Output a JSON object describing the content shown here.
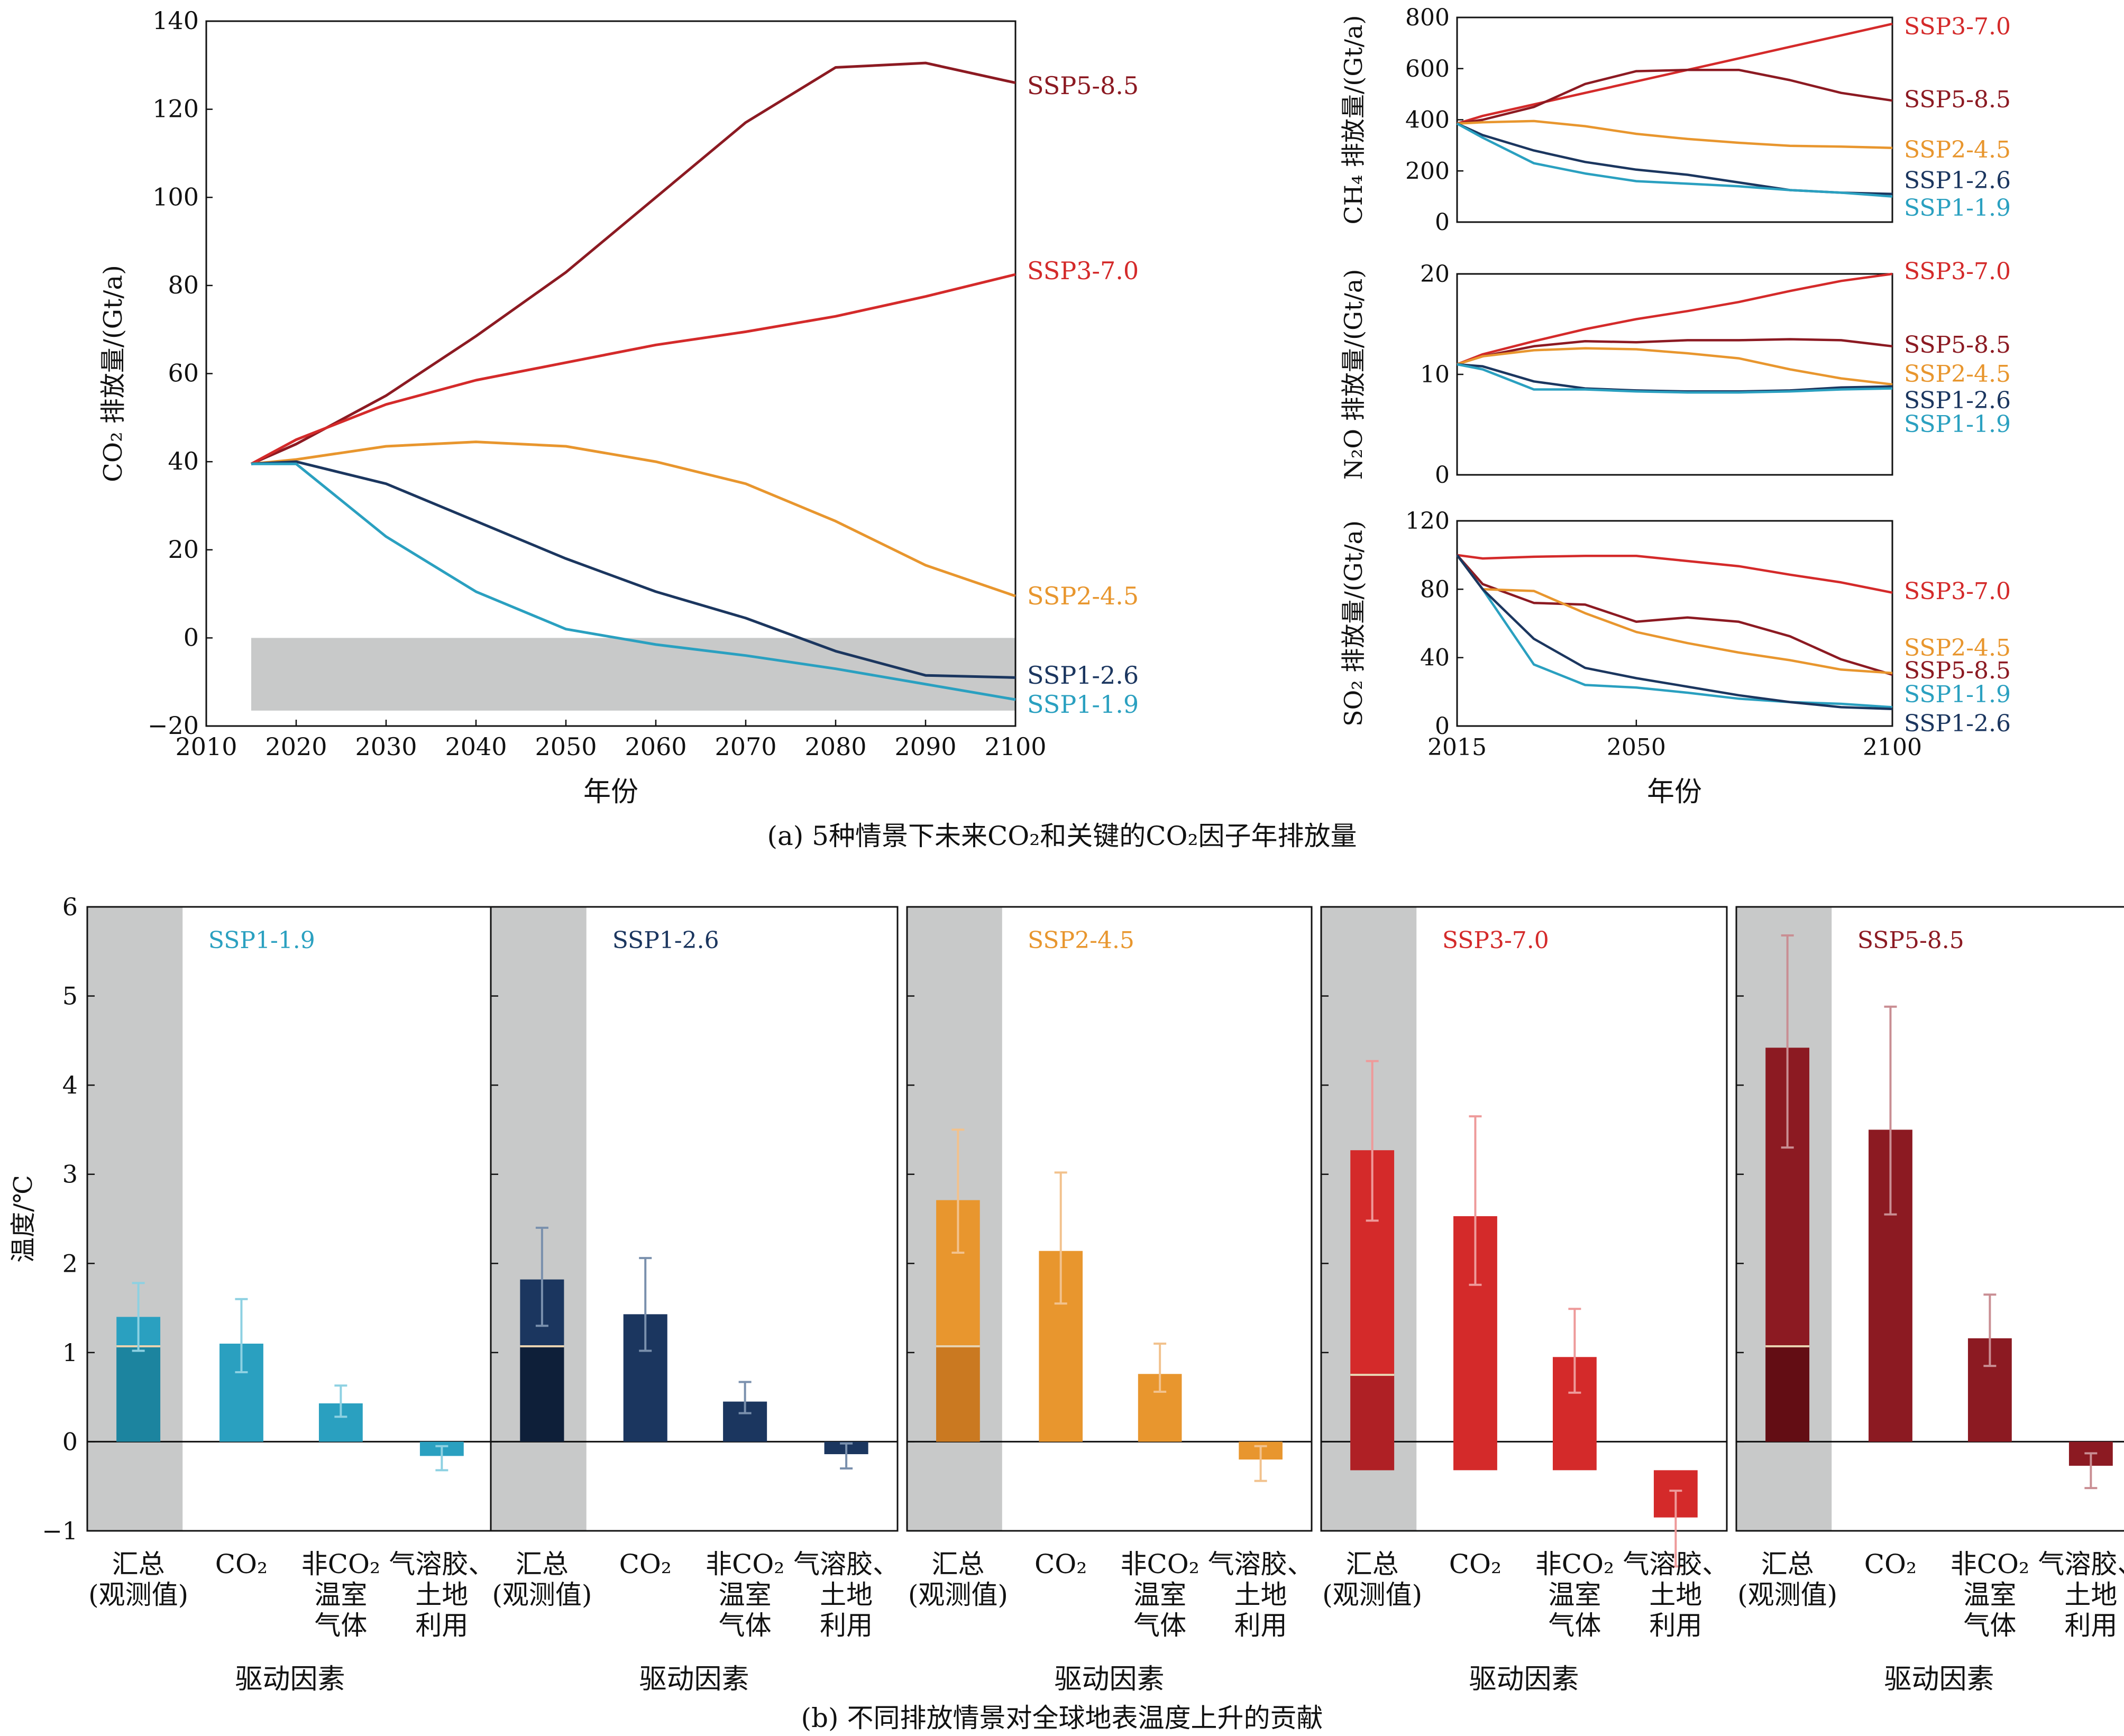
{
  "colors": {
    "SSP1-1.9": "#2aa0c0",
    "SSP1-2.6": "#1b365f",
    "SSP2-4.5": "#e8962e",
    "SSP3-7.0": "#d42a2a",
    "SSP5-8.5": "#8c1a22",
    "grey": "#c8c9c9"
  },
  "panel_a": {
    "caption": "(a) 5种情景下未来CO₂和关键的CO₂因子年排放量",
    "xlabel": "年份",
    "co2": {
      "ylabel": "CO₂ 排放量/(Gt/a)",
      "xlim": [
        2010,
        2100
      ],
      "ylim": [
        -20,
        140
      ],
      "xticks": [
        "2010",
        "2020",
        "2030",
        "2040",
        "2050",
        "2060",
        "2070",
        "2080",
        "2090",
        "2100"
      ],
      "yticks": [
        "−20",
        "0",
        "20",
        "40",
        "60",
        "80",
        "100",
        "120",
        "140"
      ],
      "grey_band": [
        2015,
        2100,
        -16.5,
        0
      ]
    },
    "ch4": {
      "ylabel": "CH₄ 排放量/(Gt/a)",
      "ylim": [
        0,
        800
      ],
      "yticks": [
        "0",
        "200",
        "400",
        "600",
        "800"
      ]
    },
    "n2o": {
      "ylabel": "N₂O 排放量/(Gt/a)",
      "ylim": [
        0,
        20
      ],
      "yticks": [
        "0",
        "10",
        "20"
      ]
    },
    "so2": {
      "ylabel": "SO₂ 排放量/(Gt/a)",
      "ylim": [
        0,
        120
      ],
      "yticks": [
        "0",
        "40",
        "80",
        "120"
      ],
      "xticks": [
        "2015",
        "2050",
        "2100"
      ]
    }
  },
  "panel_b": {
    "caption": "(b) 不同排放情景对全球地表温度上升的贡献",
    "ylabel": "温度/℃",
    "yticks": [
      "−1",
      "0",
      "1",
      "2",
      "3",
      "4",
      "5",
      "6"
    ],
    "xlabel": "驱动因素",
    "categories": [
      [
        "汇总",
        "(观测值)"
      ],
      [
        "CO₂"
      ],
      [
        "非CO₂",
        "温室",
        "气体"
      ],
      [
        "气溶胶、",
        "土地",
        "利用"
      ]
    ]
  },
  "chart_data": [
    {
      "type": "line",
      "title": "",
      "ylabel": "CO₂ 排放量/(Gt/a)",
      "xlabel": "年份",
      "xlim": [
        2010,
        2100
      ],
      "ylim": [
        -20,
        140
      ],
      "x": [
        2015,
        2020,
        2030,
        2040,
        2050,
        2060,
        2070,
        2080,
        2090,
        2100
      ],
      "series": [
        {
          "name": "SSP5-8.5",
          "values": [
            39.5,
            44,
            55,
            68.5,
            83,
            100,
            117,
            129.5,
            130.5,
            126
          ]
        },
        {
          "name": "SSP3-7.0",
          "values": [
            39.5,
            45,
            53,
            58.5,
            62.5,
            66.5,
            69.5,
            73,
            77.5,
            82.5
          ]
        },
        {
          "name": "SSP2-4.5",
          "values": [
            39.5,
            40.5,
            43.5,
            44.5,
            43.5,
            40,
            35,
            26.5,
            16.5,
            9.5
          ]
        },
        {
          "name": "SSP1-2.6",
          "values": [
            39.5,
            40,
            35,
            26.5,
            18,
            10.5,
            4.5,
            -3,
            -8.5,
            -9
          ]
        },
        {
          "name": "SSP1-1.9",
          "values": [
            39.5,
            39.5,
            23,
            10.5,
            2,
            -1.5,
            -4,
            -7,
            -10.5,
            -14
          ]
        }
      ]
    },
    {
      "type": "line",
      "ylabel": "CH₄ 排放量/(Gt/a)",
      "xlim": [
        2015,
        2100
      ],
      "ylim": [
        0,
        800
      ],
      "x": [
        2015,
        2020,
        2030,
        2040,
        2050,
        2060,
        2070,
        2080,
        2090,
        2100
      ],
      "series": [
        {
          "name": "SSP3-7.0",
          "values": [
            385,
            415,
            460,
            505,
            550,
            595,
            640,
            685,
            730,
            775
          ]
        },
        {
          "name": "SSP5-8.5",
          "values": [
            385,
            400,
            450,
            540,
            590,
            595,
            595,
            555,
            505,
            475
          ]
        },
        {
          "name": "SSP2-4.5",
          "values": [
            385,
            390,
            395,
            375,
            345,
            325,
            310,
            298,
            295,
            290
          ]
        },
        {
          "name": "SSP1-2.6",
          "values": [
            385,
            340,
            280,
            235,
            205,
            185,
            155,
            125,
            115,
            110
          ]
        },
        {
          "name": "SSP1-1.9",
          "values": [
            385,
            330,
            230,
            190,
            160,
            150,
            140,
            125,
            115,
            100
          ]
        }
      ]
    },
    {
      "type": "line",
      "ylabel": "N₂O 排放量/(Gt/a)",
      "xlim": [
        2015,
        2100
      ],
      "ylim": [
        0,
        20
      ],
      "x": [
        2015,
        2020,
        2030,
        2040,
        2050,
        2060,
        2070,
        2080,
        2090,
        2100
      ],
      "series": [
        {
          "name": "SSP3-7.0",
          "values": [
            11,
            12,
            13.3,
            14.5,
            15.5,
            16.3,
            17.2,
            18.3,
            19.3,
            20
          ]
        },
        {
          "name": "SSP5-8.5",
          "values": [
            11,
            11.8,
            12.8,
            13.3,
            13.2,
            13.4,
            13.4,
            13.5,
            13.4,
            12.8
          ]
        },
        {
          "name": "SSP2-4.5",
          "values": [
            11,
            11.8,
            12.4,
            12.6,
            12.5,
            12.1,
            11.6,
            10.5,
            9.6,
            9
          ]
        },
        {
          "name": "SSP1-2.6",
          "values": [
            11,
            10.8,
            9.3,
            8.6,
            8.4,
            8.3,
            8.3,
            8.4,
            8.7,
            8.8
          ]
        },
        {
          "name": "SSP1-1.9",
          "values": [
            11,
            10.5,
            8.5,
            8.5,
            8.3,
            8.2,
            8.2,
            8.3,
            8.5,
            8.6
          ]
        }
      ]
    },
    {
      "type": "line",
      "ylabel": "SO₂ 排放量/(Gt/a)",
      "xlim": [
        2015,
        2100
      ],
      "ylim": [
        0,
        120
      ],
      "x": [
        2015,
        2020,
        2030,
        2040,
        2050,
        2060,
        2070,
        2080,
        2090,
        2100
      ],
      "series": [
        {
          "name": "SSP3-7.0",
          "values": [
            100,
            98,
            99,
            99.5,
            99.5,
            96.5,
            93.5,
            88.5,
            84,
            78
          ]
        },
        {
          "name": "SSP5-8.5",
          "values": [
            100,
            83,
            72,
            71,
            61,
            63.5,
            61,
            52.5,
            39,
            30
          ]
        },
        {
          "name": "SSP2-4.5",
          "values": [
            100,
            80,
            79,
            66,
            55,
            48.5,
            43,
            38.5,
            33,
            31
          ]
        },
        {
          "name": "SSP1-1.9",
          "values": [
            100,
            80,
            36,
            24,
            22.5,
            19.5,
            16,
            14,
            13,
            11
          ]
        },
        {
          "name": "SSP1-2.6",
          "values": [
            100,
            80,
            51,
            34,
            28,
            23,
            18,
            14,
            11,
            10
          ]
        }
      ]
    },
    {
      "type": "bar",
      "title": "SSP1-1.9",
      "categories": [
        "汇总(观测值)",
        "CO₂",
        "非CO₂温室气体",
        "气溶胶、土地利用"
      ],
      "values": [
        1.4,
        1.1,
        0.43,
        -0.16
      ],
      "bar_base": [
        0,
        0,
        0,
        0
      ],
      "error_low": [
        1.02,
        0.78,
        0.28,
        -0.32
      ],
      "error_high": [
        1.78,
        1.6,
        0.63,
        -0.05
      ],
      "observed_line": 1.07
    },
    {
      "type": "bar",
      "title": "SSP1-2.6",
      "categories": [
        "汇总(观测值)",
        "CO₂",
        "非CO₂温室气体",
        "气溶胶、土地利用"
      ],
      "values": [
        1.82,
        1.43,
        0.45,
        -0.14
      ],
      "bar_base": [
        0,
        0,
        0,
        0
      ],
      "error_low": [
        1.3,
        1.02,
        0.32,
        -0.3
      ],
      "error_high": [
        2.4,
        2.06,
        0.67,
        -0.02
      ],
      "observed_line": 1.07
    },
    {
      "type": "bar",
      "title": "SSP2-4.5",
      "categories": [
        "汇总(观测值)",
        "CO₂",
        "非CO₂温室气体",
        "气溶胶、土地利用"
      ],
      "values": [
        2.71,
        2.14,
        0.76,
        -0.2
      ],
      "bar_base": [
        0,
        0,
        0,
        0
      ],
      "error_low": [
        2.12,
        1.55,
        0.56,
        -0.44
      ],
      "error_high": [
        3.5,
        3.02,
        1.1,
        -0.05
      ],
      "observed_line": 1.07
    },
    {
      "type": "bar",
      "title": "SSP3-7.0",
      "categories": [
        "汇总(观测值)",
        "CO₂",
        "非CO₂温室气体",
        "气溶胶、土地利用"
      ],
      "values": [
        3.27,
        2.53,
        0.95,
        -0.85
      ],
      "bar_base": [
        -0.32,
        -0.32,
        -0.32,
        -0.32
      ],
      "error_low": [
        2.48,
        1.76,
        0.55,
        -1.4
      ],
      "error_high": [
        4.27,
        3.65,
        1.49,
        -0.55
      ],
      "observed_line": 0.75
    },
    {
      "type": "bar",
      "title": "SSP5-8.5",
      "categories": [
        "汇总(观测值)",
        "CO₂",
        "非CO₂温室气体",
        "气溶胶、土地利用"
      ],
      "values": [
        4.42,
        3.5,
        1.16,
        -0.27
      ],
      "bar_base": [
        0,
        0,
        0,
        0
      ],
      "error_low": [
        3.3,
        2.55,
        0.85,
        -0.52
      ],
      "error_high": [
        5.68,
        4.88,
        1.65,
        -0.13
      ],
      "observed_line": 1.07
    }
  ]
}
